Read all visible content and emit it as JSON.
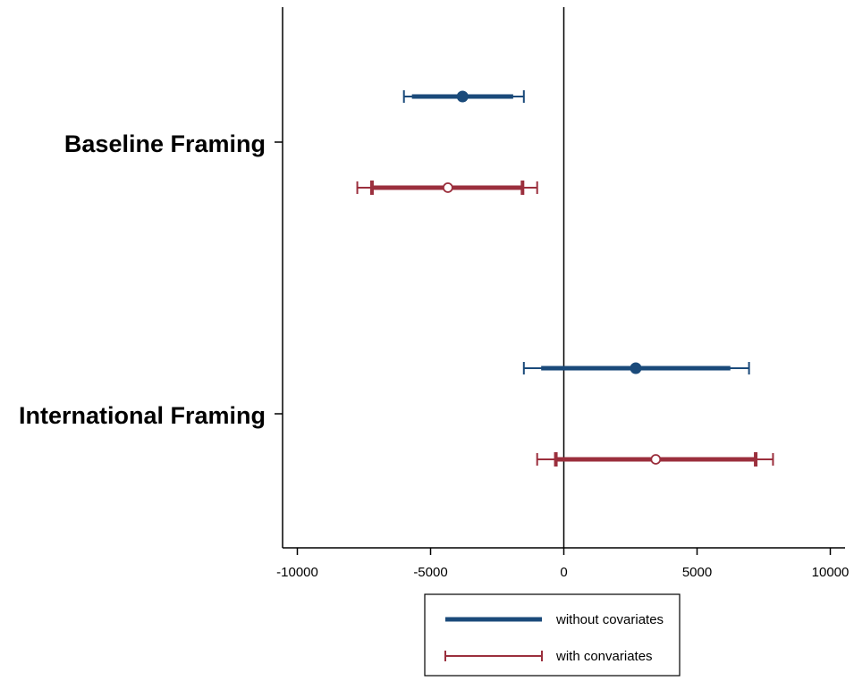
{
  "chart_data": {
    "type": "coefficient-plot",
    "orientation": "horizontal",
    "xlim": [
      -10500,
      10500
    ],
    "xticks": [
      -10000,
      -5000,
      0,
      5000,
      10000
    ],
    "xtick_labels": [
      "-10000",
      "-5000",
      "0",
      "5000",
      "10000"
    ],
    "reference_line_x": 0,
    "categories": [
      "Baseline Framing",
      "International Framing"
    ],
    "series": [
      {
        "name": "without covariates",
        "color": "#1a4a7a",
        "marker": "filled-circle",
        "points": [
          {
            "category": "Baseline Framing",
            "estimate": -3800,
            "ci95": [
              -6000,
              -1500
            ],
            "ci90": [
              -5700,
              -1900
            ]
          },
          {
            "category": "International Framing",
            "estimate": 2700,
            "ci95": [
              -1500,
              6950
            ],
            "ci90": [
              -850,
              6250
            ]
          }
        ]
      },
      {
        "name": "with convariates",
        "color": "#9b2f3d",
        "marker": "hollow-circle",
        "points": [
          {
            "category": "Baseline Framing",
            "estimate": -4350,
            "ci95": [
              -7750,
              -1000
            ],
            "ci90": [
              -7200,
              -1550
            ]
          },
          {
            "category": "International Framing",
            "estimate": 3450,
            "ci95": [
              -1000,
              7850
            ],
            "ci90": [
              -300,
              7200
            ]
          }
        ]
      }
    ],
    "legend": {
      "position": "bottom",
      "entries": [
        "without covariates",
        "with convariates"
      ]
    }
  }
}
